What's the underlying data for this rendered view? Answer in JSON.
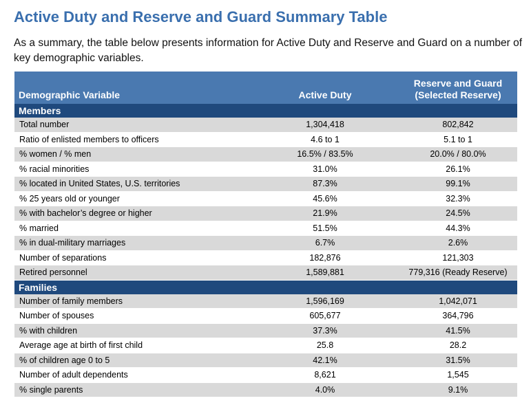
{
  "title": "Active Duty and Reserve and Guard Summary Table",
  "intro": "As a summary, the table below presents information for Active Duty and Reserve and Guard on a number of key demographic variables.",
  "table": {
    "headers": {
      "variable": "Demographic Variable",
      "active": "Active Duty",
      "reserve_line1": "Reserve and Guard",
      "reserve_line2": "(Selected Reserve)"
    },
    "sections": [
      {
        "name": "Members",
        "rows": [
          [
            "Total number",
            "1,304,418",
            "802,842"
          ],
          [
            "Ratio of enlisted members to officers",
            "4.6 to 1",
            "5.1 to 1"
          ],
          [
            "% women / % men",
            "16.5% / 83.5%",
            "20.0% / 80.0%"
          ],
          [
            "% racial minorities",
            "31.0%",
            "26.1%"
          ],
          [
            "% located in United States, U.S. territories",
            "87.3%",
            "99.1%"
          ],
          [
            "% 25 years old or younger",
            "45.6%",
            "32.3%"
          ],
          [
            "% with bachelor’s degree or higher",
            "21.9%",
            "24.5%"
          ],
          [
            "% married",
            "51.5%",
            "44.3%"
          ],
          [
            "% in dual-military marriages",
            "6.7%",
            "2.6%"
          ],
          [
            "Number of separations",
            "182,876",
            "121,303"
          ],
          [
            "Retired personnel",
            "1,589,881",
            "779,316 (Ready Reserve)"
          ]
        ]
      },
      {
        "name": "Families",
        "rows": [
          [
            "Number of family members",
            "1,596,169",
            "1,042,071"
          ],
          [
            "Number of spouses",
            "605,677",
            "364,796"
          ],
          [
            "% with children",
            "37.3%",
            "41.5%"
          ],
          [
            "Average age at birth of first child",
            "25.8",
            "28.2"
          ],
          [
            "% of children age 0 to 5",
            "42.1%",
            "31.5%"
          ],
          [
            "Number of adult dependents",
            "8,621",
            "1,545"
          ],
          [
            "% single parents",
            "4.0%",
            "9.1%"
          ]
        ]
      }
    ]
  },
  "colors": {
    "title": "#3a6fae",
    "header_bg": "#4a79b0",
    "section_bg": "#1f497d",
    "row_shade": "#d9d9d9"
  }
}
